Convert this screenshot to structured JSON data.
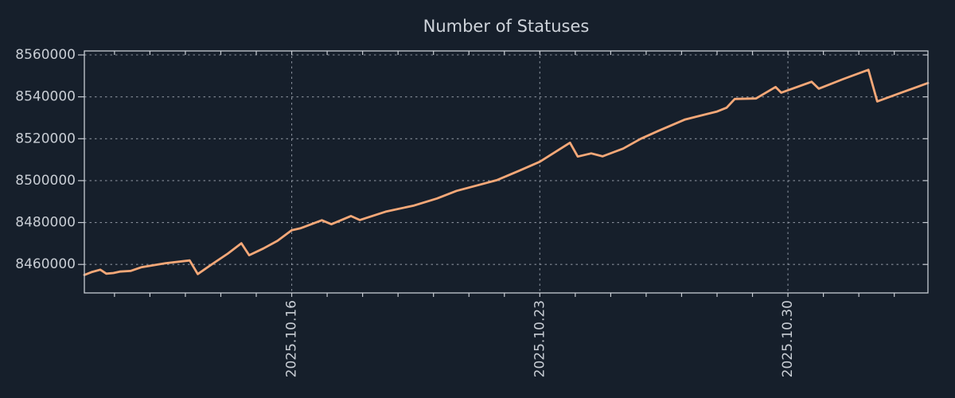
{
  "chart_data": {
    "type": "line",
    "title": "Number of Statuses",
    "legend": "none",
    "grid": {
      "horizontal": "dashed",
      "vertical": "dashed-at-major-x-ticks"
    },
    "colors": {
      "background": "#161f2b",
      "line": "#f6a878",
      "grid": "#9aa1ad",
      "spine": "#c7ccd3",
      "text": "#c8cdd4",
      "title": "#ced3da"
    },
    "x": {
      "unit": "days-from-left-edge",
      "min": 0,
      "max": 23.8,
      "major_ticks": [
        {
          "pos": 5.85,
          "label": "2025.10.16"
        },
        {
          "pos": 12.85,
          "label": "2025.10.23"
        },
        {
          "pos": 19.85,
          "label": "2025.10.30"
        }
      ],
      "minor_tick_start": 0.85,
      "minor_tick_step": 1,
      "label_rotation_deg": -90
    },
    "y": {
      "min": 8446400,
      "max": 8561900,
      "ticks": [
        {
          "v": 8460000,
          "label": "8460000"
        },
        {
          "v": 8480000,
          "label": "8480000"
        },
        {
          "v": 8500000,
          "label": "8500000"
        },
        {
          "v": 8520000,
          "label": "8520000"
        },
        {
          "v": 8540000,
          "label": "8540000"
        },
        {
          "v": 8560000,
          "label": "8560000"
        }
      ]
    },
    "series": [
      {
        "name": "statuses",
        "color": "#f6a878",
        "points": [
          [
            0.0,
            8455000
          ],
          [
            0.2,
            8456300
          ],
          [
            0.45,
            8457500
          ],
          [
            0.62,
            8455600
          ],
          [
            0.82,
            8455900
          ],
          [
            1.0,
            8456600
          ],
          [
            1.3,
            8456900
          ],
          [
            1.62,
            8458700
          ],
          [
            2.3,
            8460600
          ],
          [
            2.97,
            8461900
          ],
          [
            3.2,
            8455400
          ],
          [
            3.62,
            8460300
          ],
          [
            4.05,
            8465200
          ],
          [
            4.43,
            8470100
          ],
          [
            4.65,
            8464400
          ],
          [
            5.05,
            8467600
          ],
          [
            5.45,
            8471300
          ],
          [
            5.85,
            8476300
          ],
          [
            6.1,
            8477300
          ],
          [
            6.7,
            8481100
          ],
          [
            6.97,
            8479200
          ],
          [
            7.52,
            8483100
          ],
          [
            7.77,
            8481200
          ],
          [
            8.5,
            8485200
          ],
          [
            9.3,
            8488100
          ],
          [
            9.95,
            8491500
          ],
          [
            10.5,
            8495100
          ],
          [
            11.1,
            8497800
          ],
          [
            11.65,
            8500300
          ],
          [
            12.25,
            8504600
          ],
          [
            12.85,
            8509000
          ],
          [
            13.7,
            8518100
          ],
          [
            13.92,
            8511500
          ],
          [
            14.3,
            8513000
          ],
          [
            14.62,
            8511600
          ],
          [
            15.2,
            8515300
          ],
          [
            15.7,
            8520000
          ],
          [
            16.2,
            8523800
          ],
          [
            16.95,
            8529200
          ],
          [
            17.85,
            8533000
          ],
          [
            18.12,
            8534800
          ],
          [
            18.35,
            8539000
          ],
          [
            18.95,
            8539200
          ],
          [
            19.5,
            8544700
          ],
          [
            19.66,
            8542000
          ],
          [
            20.52,
            8547200
          ],
          [
            20.72,
            8543900
          ],
          [
            21.4,
            8548400
          ],
          [
            22.12,
            8552900
          ],
          [
            22.37,
            8537800
          ],
          [
            23.1,
            8542300
          ],
          [
            23.8,
            8546600
          ]
        ]
      }
    ]
  }
}
